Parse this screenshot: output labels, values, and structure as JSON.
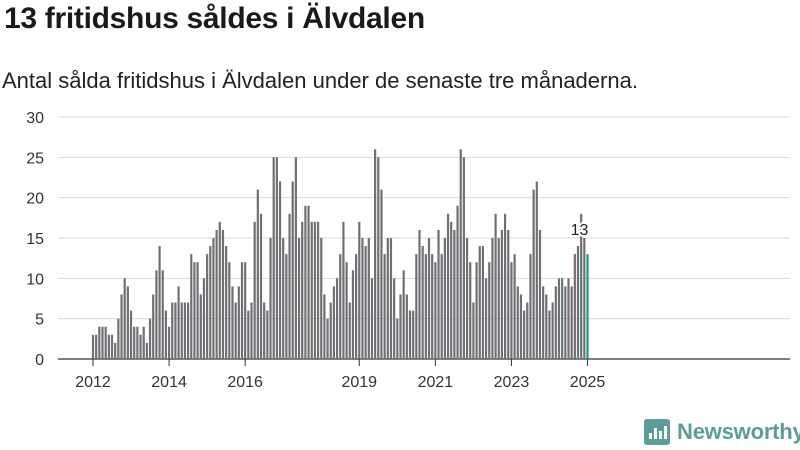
{
  "header": {
    "title": "13 fritidshus såldes i Älvdalen",
    "subtitle": "Antal sålda fritidshus i Älvdalen under de senaste tre månaderna."
  },
  "brand": {
    "name": "Newsworthy",
    "color": "#5a9e97"
  },
  "colors": {
    "bar": "#706f73",
    "highlight": "#1a9988",
    "grid": "#d9d9d9",
    "axis": "#333333"
  },
  "chart_data": {
    "type": "bar",
    "title": "",
    "xlabel": "",
    "ylabel": "",
    "ylim": [
      0,
      30
    ],
    "yticks": [
      0,
      5,
      10,
      15,
      20,
      25,
      30
    ],
    "grid": true,
    "x_start": "2012-01",
    "x_end": "2025-01",
    "x_ticks": [
      "2012",
      "2014",
      "2016",
      "2019",
      "2021",
      "2023",
      "2025"
    ],
    "values": [
      3,
      3,
      4,
      4,
      4,
      3,
      3,
      2,
      5,
      8,
      10,
      9,
      6,
      4,
      4,
      3,
      4,
      2,
      5,
      8,
      11,
      14,
      11,
      6,
      4,
      7,
      7,
      9,
      7,
      7,
      7,
      13,
      12,
      12,
      8,
      10,
      13,
      14,
      15,
      16,
      17,
      16,
      14,
      12,
      9,
      7,
      9,
      12,
      12,
      6,
      7,
      17,
      21,
      18,
      7,
      6,
      15,
      25,
      25,
      22,
      15,
      13,
      18,
      22,
      25,
      15,
      17,
      19,
      19,
      17,
      17,
      17,
      15,
      8,
      5,
      7,
      9,
      10,
      13,
      17,
      12,
      7,
      11,
      13,
      17,
      15,
      14,
      15,
      10,
      26,
      25,
      21,
      13,
      15,
      15,
      10,
      5,
      8,
      11,
      8,
      6,
      6,
      13,
      16,
      14,
      13,
      15,
      13,
      12,
      16,
      13,
      15,
      18,
      17,
      16,
      19,
      26,
      25,
      15,
      12,
      7,
      12,
      14,
      14,
      10,
      12,
      15,
      18,
      15,
      16,
      18,
      16,
      12,
      13,
      9,
      8,
      6,
      7,
      13,
      21,
      22,
      16,
      9,
      8,
      6,
      7,
      9,
      10,
      10,
      9,
      10,
      9,
      13,
      14,
      18,
      15,
      13
    ],
    "highlight_index": 156,
    "highlight_label": "13"
  }
}
